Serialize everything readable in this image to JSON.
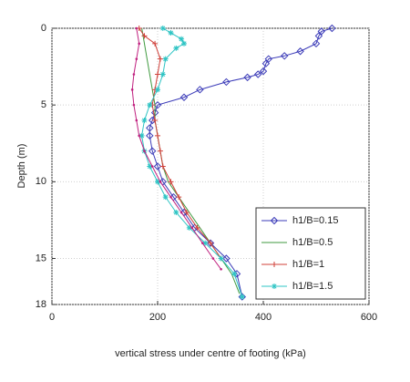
{
  "chart_data": {
    "type": "line",
    "xlabel": "vertical stress under centre of footing (kPa)",
    "ylabel": "Depth (m)",
    "xlim": [
      0,
      600
    ],
    "xticks": [
      0,
      200,
      400,
      600
    ],
    "ylim": [
      0,
      18
    ],
    "yticks": [
      0,
      5,
      10,
      15,
      18
    ],
    "y_inverted": true,
    "grid": true,
    "legend": "lower right",
    "series": [
      {
        "name": "h1/B=0.15",
        "color": "#3b3bb8",
        "marker": "diamond",
        "x": [
          530,
          510,
          505,
          500,
          470,
          440,
          410,
          405,
          400,
          390,
          370,
          330,
          280,
          250,
          200,
          195,
          190,
          185,
          185,
          190,
          200,
          210,
          230,
          250,
          270,
          300,
          330,
          350,
          360
        ],
        "values": [
          0,
          0.2,
          0.5,
          1,
          1.5,
          1.8,
          2,
          2.3,
          2.8,
          3,
          3.2,
          3.5,
          4,
          4.5,
          5,
          5.5,
          6,
          6.5,
          7,
          8,
          9,
          10,
          11,
          12,
          13,
          14,
          15,
          16,
          17.5
        ]
      },
      {
        "name": "h1/B=0.5",
        "color": "#3f9a3f",
        "marker": "none",
        "x": [
          170,
          175,
          180,
          185,
          190,
          195,
          195,
          200,
          205,
          210,
          220,
          240,
          260,
          280,
          300,
          320,
          340,
          355
        ],
        "values": [
          0,
          1,
          2,
          3,
          4,
          5,
          6,
          7,
          8,
          9,
          10,
          11,
          12,
          13,
          14,
          15,
          16,
          17.3
        ]
      },
      {
        "name": "h1/B=1",
        "color": "#d0403a",
        "marker": "plus",
        "x": [
          165,
          175,
          195,
          205,
          200,
          195,
          190,
          195,
          200,
          205,
          210,
          225,
          240,
          255,
          275,
          300,
          320
        ],
        "values": [
          0,
          0.5,
          1,
          2,
          3,
          4,
          5,
          6,
          7,
          8,
          9,
          10,
          11,
          12,
          13,
          14,
          15
        ]
      },
      {
        "name": "h1/B=1.5",
        "color": "#2ec4c4",
        "marker": "star",
        "x": [
          210,
          225,
          245,
          250,
          235,
          215,
          210,
          200,
          185,
          175,
          170,
          175,
          185,
          200,
          215,
          235,
          260,
          290,
          320,
          345,
          360
        ],
        "values": [
          0,
          0.3,
          0.7,
          1,
          1.3,
          2,
          3,
          4,
          5,
          6,
          7,
          8,
          9,
          10,
          11,
          12,
          13,
          14,
          15,
          16,
          17.5
        ]
      },
      {
        "color": "#c0207f",
        "marker": "dot",
        "x": [
          160,
          165,
          160,
          155,
          152,
          155,
          160,
          165,
          175,
          190,
          205,
          225,
          245,
          265,
          285,
          305,
          320
        ],
        "values": [
          0,
          1,
          2,
          3,
          4,
          5,
          6,
          7,
          8,
          9,
          10,
          11,
          12,
          13,
          14,
          15,
          15.7
        ]
      }
    ]
  }
}
